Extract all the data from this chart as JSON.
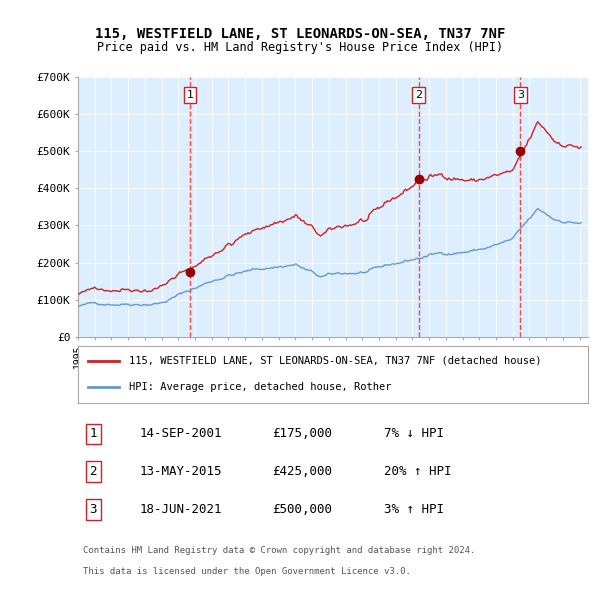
{
  "title1": "115, WESTFIELD LANE, ST LEONARDS-ON-SEA, TN37 7NF",
  "title2": "Price paid vs. HM Land Registry's House Price Index (HPI)",
  "ylim": [
    0,
    700000
  ],
  "yticks": [
    0,
    100000,
    200000,
    300000,
    400000,
    500000,
    600000,
    700000
  ],
  "ytick_labels": [
    "£0",
    "£100K",
    "£200K",
    "£300K",
    "£400K",
    "£500K",
    "£600K",
    "£700K"
  ],
  "sale_dates": [
    "14-SEP-2001",
    "13-MAY-2015",
    "18-JUN-2021"
  ],
  "sale_prices": [
    175000,
    425000,
    500000
  ],
  "sale_years": [
    2001.71,
    2015.37,
    2021.46
  ],
  "sale_hpi_pct": [
    "7% ↓ HPI",
    "20% ↑ HPI",
    "3% ↑ HPI"
  ],
  "sale_labels": [
    "1",
    "2",
    "3"
  ],
  "hpi_line_color": "#6699cc",
  "property_line_color": "#cc2222",
  "dot_color": "#990000",
  "vline_color": "#ff4444",
  "background_color": "#ddeeff",
  "legend_label_property": "115, WESTFIELD LANE, ST LEONARDS-ON-SEA, TN37 7NF (detached house)",
  "legend_label_hpi": "HPI: Average price, detached house, Rother",
  "footer1": "Contains HM Land Registry data © Crown copyright and database right 2024.",
  "footer2": "This data is licensed under the Open Government Licence v3.0."
}
